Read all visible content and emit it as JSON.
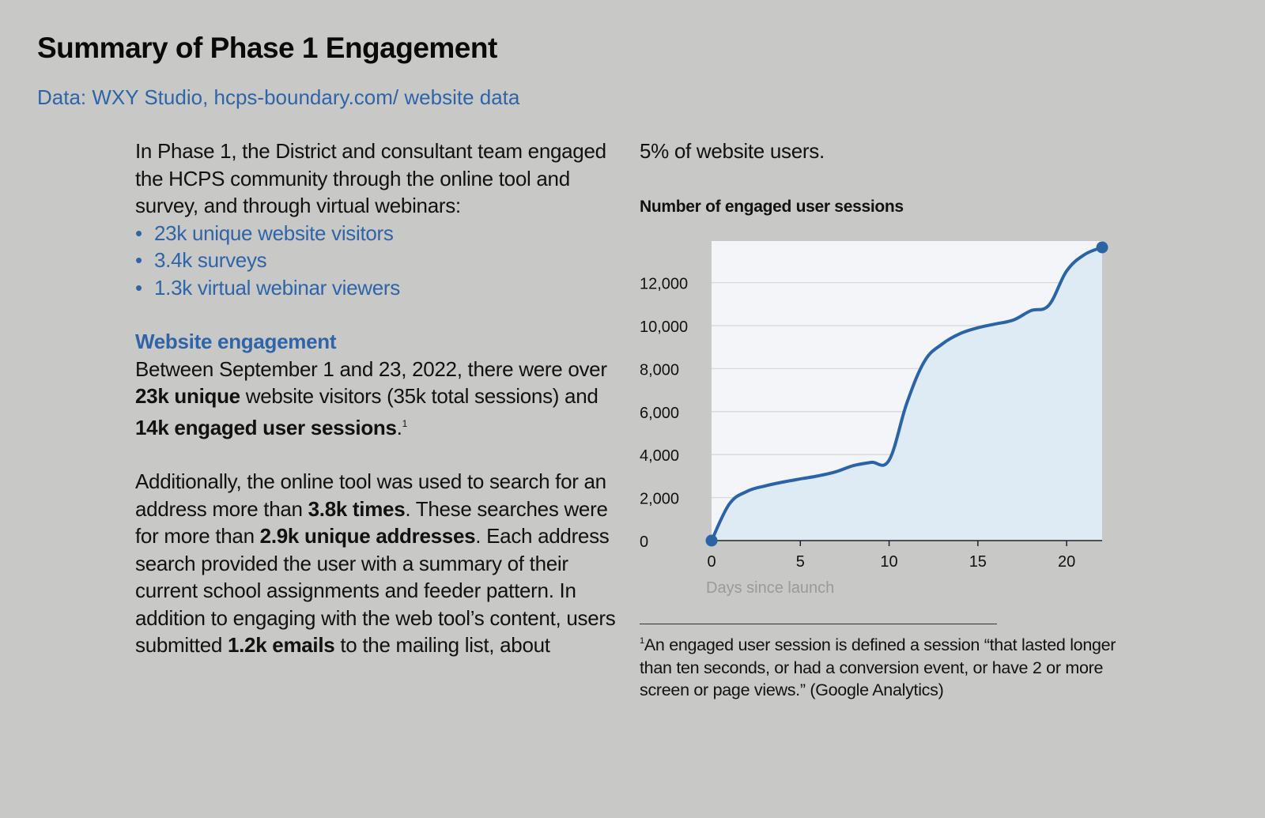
{
  "page": {
    "title": "Summary of Phase 1 Engagement",
    "subtitle": "Data: WXY Studio, hcps-boundary.com/ website data"
  },
  "intro": {
    "text": "In Phase 1, the District and consultant team engaged the HCPS community through the online tool and survey, and through virtual webinars:",
    "bullets": [
      "23k unique website visitors",
      "3.4k surveys",
      "1.3k virtual webinar viewers"
    ]
  },
  "website_engagement": {
    "heading": "Website engagement",
    "p1": {
      "a": "Between September 1 and 23, 2022, there were over ",
      "b1": "23k unique",
      "c": " website visitors (35k total sessions) and ",
      "b2": "14k engaged user sessions",
      "d": ".",
      "sup": "1"
    },
    "p2": {
      "a": "Additionally, the online tool was used to search for an address more than ",
      "b1": "3.8k times",
      "c": ". These searches were for more than ",
      "b2": "2.9k unique addresses",
      "d": ". Each address search provided the user with a summary of their current school assignments and feeder pattern. In addition to engaging with the web tool’s content, users submitted ",
      "b3": "1.2k emails",
      "e": " to the mailing list, about"
    },
    "continuation": "5% of website users."
  },
  "footnote": {
    "sup": "1",
    "text": "An engaged user session is defined a session “that lasted longer than ten seconds, or had a conversion event, or have 2 or more screen or page views.” (Google Analytics)"
  },
  "colors": {
    "accent": "#2e64a8",
    "line": "#2a63a6",
    "fill": "#deeaf4",
    "plot_bg": "#f4f5f8",
    "grid": "#d6d8dc",
    "page_bg": "#c8c8c6"
  },
  "chart_data": {
    "type": "area",
    "title": "Number of engaged user sessions",
    "xlabel": "Days since launch",
    "ylabel": "",
    "xlim": [
      0,
      22
    ],
    "ylim": [
      0,
      14000
    ],
    "x_ticks": [
      0,
      5,
      10,
      15,
      20
    ],
    "y_ticks": [
      0,
      2000,
      4000,
      6000,
      8000,
      10000,
      12000
    ],
    "y_tick_labels": [
      "0",
      "2,000",
      "4,000",
      "6,000",
      "8,000",
      "10,000",
      "12,000"
    ],
    "grid": true,
    "legend": "none",
    "markers": "endpoints",
    "series": [
      {
        "name": "Engaged user sessions",
        "x": [
          0,
          1,
          2,
          3,
          4,
          5,
          6,
          7,
          8,
          9,
          10,
          11,
          12,
          13,
          14,
          15,
          16,
          17,
          18,
          19,
          20,
          21,
          22
        ],
        "values": [
          0,
          1700,
          2290,
          2540,
          2720,
          2870,
          3010,
          3200,
          3490,
          3640,
          3740,
          6400,
          8350,
          9150,
          9630,
          9900,
          10080,
          10260,
          10700,
          10950,
          12540,
          13300,
          13640
        ]
      }
    ]
  }
}
